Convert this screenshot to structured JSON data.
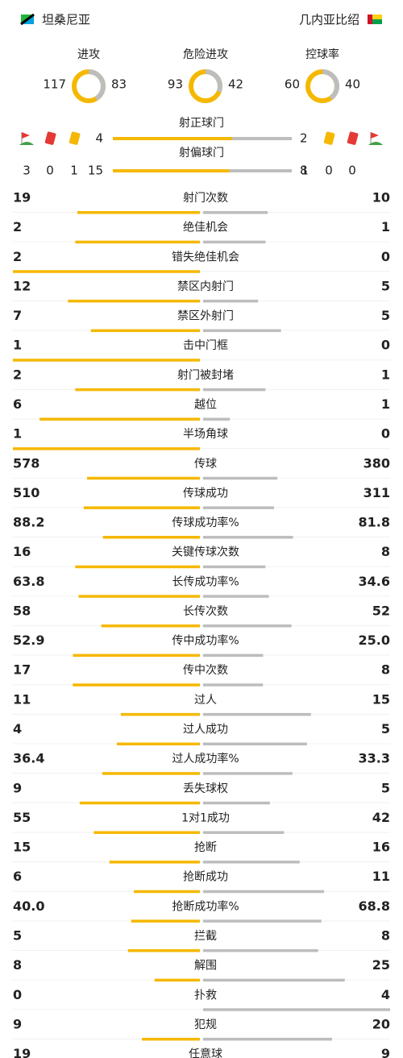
{
  "home_team": "坦桑尼亚",
  "away_team": "几内亚比绍",
  "summary": [
    {
      "label": "进攻",
      "home": 117,
      "away": 83
    },
    {
      "label": "危险进攻",
      "home": 93,
      "away": 42
    },
    {
      "label": "控球率",
      "home": 60,
      "away": 40
    }
  ],
  "shots": [
    {
      "label": "射正球门",
      "home": 4,
      "away": 2
    },
    {
      "label": "射偏球门",
      "home": 15,
      "away": 8
    }
  ],
  "cards": {
    "home": {
      "corners": 3,
      "red": 0,
      "yellow": 1
    },
    "away": {
      "yellow": 1,
      "red": 0,
      "corners": 0
    }
  },
  "stats": [
    {
      "label": "射门次数",
      "home": 19,
      "away": 10
    },
    {
      "label": "绝佳机会",
      "home": 2,
      "away": 1
    },
    {
      "label": "错失绝佳机会",
      "home": 2,
      "away": 0
    },
    {
      "label": "禁区内射门",
      "home": 12,
      "away": 5
    },
    {
      "label": "禁区外射门",
      "home": 7,
      "away": 5
    },
    {
      "label": "击中门框",
      "home": 1,
      "away": 0
    },
    {
      "label": "射门被封堵",
      "home": 2,
      "away": 1
    },
    {
      "label": "越位",
      "home": 6,
      "away": 1
    },
    {
      "label": "半场角球",
      "home": 1,
      "away": 0
    },
    {
      "label": "传球",
      "home": 578,
      "away": 380
    },
    {
      "label": "传球成功",
      "home": 510,
      "away": 311
    },
    {
      "label": "传球成功率%",
      "home": 88.2,
      "away": 81.8
    },
    {
      "label": "关键传球次数",
      "home": 16,
      "away": 8
    },
    {
      "label": "长传成功率%",
      "home": 63.8,
      "away": 34.6
    },
    {
      "label": "长传次数",
      "home": 58,
      "away": 52
    },
    {
      "label": "传中成功率%",
      "home": 52.9,
      "away": {
        "value": 25,
        "label": "25.0"
      }
    },
    {
      "label": "传中次数",
      "home": 17,
      "away": 8
    },
    {
      "label": "过人",
      "home": 11,
      "away": 15
    },
    {
      "label": "过人成功",
      "home": 4,
      "away": 5
    },
    {
      "label": "过人成功率%",
      "home": 36.4,
      "away": 33.3
    },
    {
      "label": "丢失球权",
      "home": 9,
      "away": 5
    },
    {
      "label": "1对1成功",
      "home": 55,
      "away": 42
    },
    {
      "label": "抢断",
      "home": 15,
      "away": 16
    },
    {
      "label": "抢断成功",
      "home": 6,
      "away": 11
    },
    {
      "label": "抢断成功率%",
      "home": {
        "value": 40,
        "label": "40.0"
      },
      "away": 68.8
    },
    {
      "label": "拦截",
      "home": 5,
      "away": 8
    },
    {
      "label": "解围",
      "home": 8,
      "away": 25
    },
    {
      "label": "扑救",
      "home": 0,
      "away": 4
    },
    {
      "label": "犯规",
      "home": 9,
      "away": 20
    },
    {
      "label": "任意球",
      "home": 19,
      "away": 9
    }
  ]
}
